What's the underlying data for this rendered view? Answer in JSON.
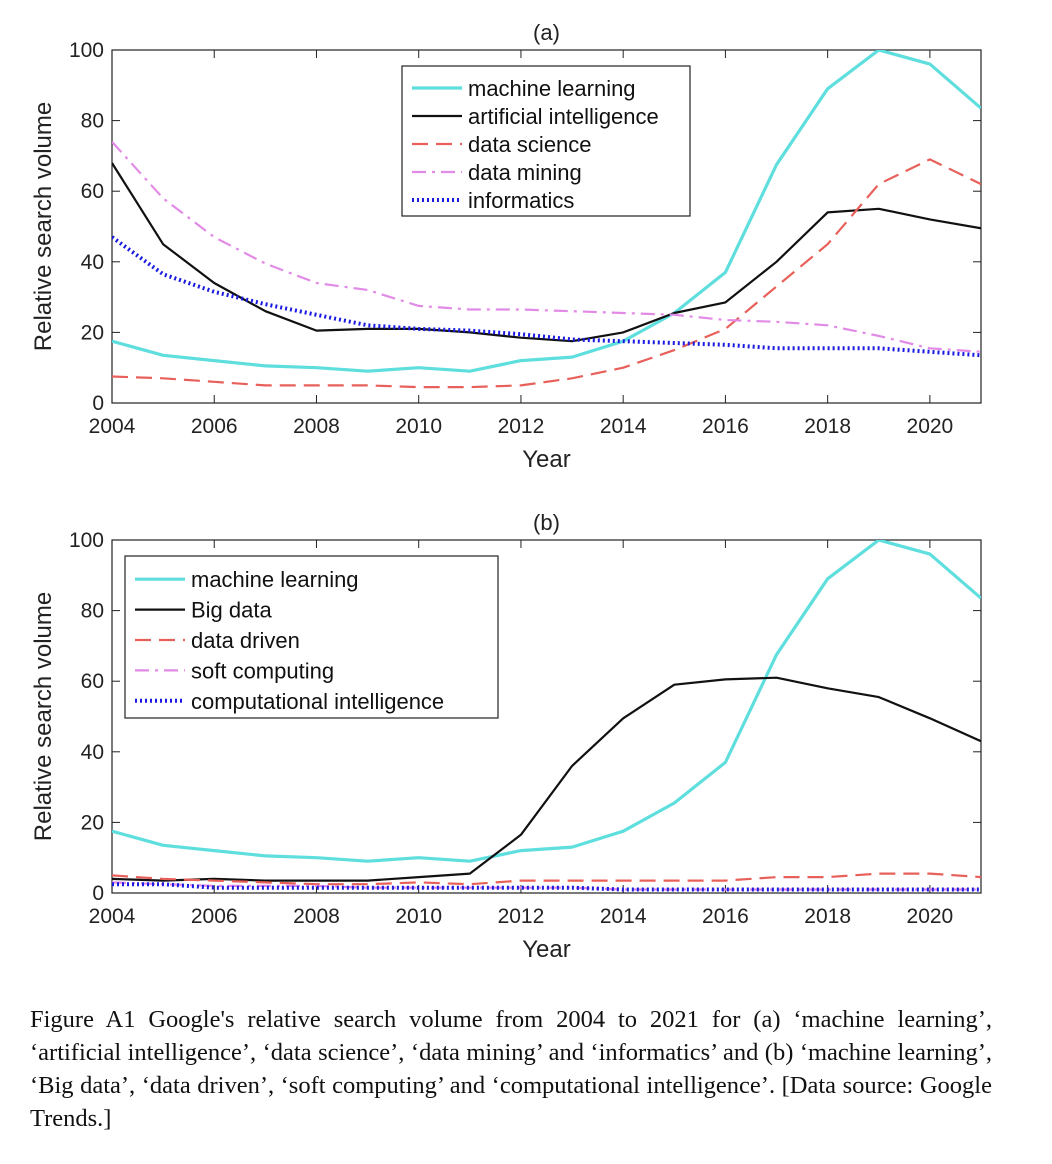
{
  "caption": "Figure A1 Google's relative search volume from 2004 to 2021 for (a) ‘machine learning’, ‘artificial intelligence’, ‘data science’, ‘data mining’ and ‘informatics’ and (b) ‘machine learning’, ‘Big data’, ‘data driven’, ‘soft computing’ and ‘computational intelligence’. [Data source: Google Trends.]",
  "colors": {
    "machine_learning": "#5fdede",
    "black_series": "#111111",
    "red_dashed": "#e8605a",
    "violet_dashdot": "#e28be6",
    "blue_dotted": "#1a1ae0"
  },
  "chart_data": [
    {
      "type": "line",
      "title": "(a)",
      "xlabel": "Year",
      "ylabel": "Relative search volume",
      "xlim": [
        2004,
        2021
      ],
      "ylim": [
        0,
        100
      ],
      "xticks": [
        2004,
        2006,
        2008,
        2010,
        2012,
        2014,
        2016,
        2018,
        2020
      ],
      "yticks": [
        0,
        20,
        40,
        60,
        80,
        100
      ],
      "legend_position": "top-center",
      "x": [
        2004,
        2005,
        2006,
        2007,
        2008,
        2009,
        2010,
        2011,
        2012,
        2013,
        2014,
        2015,
        2016,
        2017,
        2018,
        2019,
        2020,
        2021
      ],
      "series": [
        {
          "name": "machine learning",
          "style": "solid",
          "color": "#5fdede",
          "values": [
            17.5,
            13.5,
            12,
            10.5,
            10,
            9,
            10,
            9,
            12,
            13,
            17.5,
            25.5,
            37,
            67.5,
            89,
            100,
            96,
            83.5
          ]
        },
        {
          "name": "artificial intelligence",
          "style": "solid",
          "color": "#111111",
          "values": [
            68,
            45,
            34,
            26,
            20.5,
            21,
            21,
            20,
            18.5,
            17.5,
            20,
            25.5,
            28.5,
            40,
            54,
            55,
            52,
            49.5
          ]
        },
        {
          "name": "data science",
          "style": "dashed",
          "color": "#e8605a",
          "values": [
            7.5,
            7,
            6,
            5,
            5,
            5,
            4.5,
            4.5,
            5,
            7,
            10,
            15,
            21,
            33,
            45,
            62,
            69,
            62
          ]
        },
        {
          "name": "data mining",
          "style": "dashdot",
          "color": "#e28be6",
          "values": [
            74,
            58,
            47,
            39.5,
            34,
            32,
            27.5,
            26.5,
            26.5,
            26,
            25.5,
            25,
            23.5,
            23,
            22,
            19,
            15.5,
            14.5
          ]
        },
        {
          "name": "informatics",
          "style": "dotted",
          "color": "#1a1ae0",
          "values": [
            47,
            36.5,
            31.5,
            28,
            25,
            22,
            21,
            20.5,
            19.5,
            18,
            17.5,
            17,
            16.5,
            15.5,
            15.5,
            15.5,
            14.5,
            13.5
          ]
        }
      ]
    },
    {
      "type": "line",
      "title": "(b)",
      "xlabel": "Year",
      "ylabel": "Relative search volume",
      "xlim": [
        2004,
        2021
      ],
      "ylim": [
        0,
        100
      ],
      "xticks": [
        2004,
        2006,
        2008,
        2010,
        2012,
        2014,
        2016,
        2018,
        2020
      ],
      "yticks": [
        0,
        20,
        40,
        60,
        80,
        100
      ],
      "legend_position": "top-left",
      "x": [
        2004,
        2005,
        2006,
        2007,
        2008,
        2009,
        2010,
        2011,
        2012,
        2013,
        2014,
        2015,
        2016,
        2017,
        2018,
        2019,
        2020,
        2021
      ],
      "series": [
        {
          "name": "machine learning",
          "style": "solid",
          "color": "#5fdede",
          "values": [
            17.5,
            13.5,
            12,
            10.5,
            10,
            9,
            10,
            9,
            12,
            13,
            17.5,
            25.5,
            37,
            67.5,
            89,
            100,
            96,
            83.5
          ]
        },
        {
          "name": "Big data",
          "style": "solid",
          "color": "#111111",
          "values": [
            4,
            3.5,
            4,
            3.5,
            3.5,
            3.5,
            4.5,
            5.5,
            16.5,
            36,
            49.5,
            59,
            60.5,
            61,
            58,
            55.5,
            49.5,
            43
          ]
        },
        {
          "name": "data driven",
          "style": "dashed",
          "color": "#e8605a",
          "values": [
            5,
            4,
            3.5,
            3,
            2.5,
            2.5,
            3,
            2.5,
            3.5,
            3.5,
            3.5,
            3.5,
            3.5,
            4.5,
            4.5,
            5.5,
            5.5,
            4.5
          ]
        },
        {
          "name": "soft computing",
          "style": "dashdot",
          "color": "#e28be6",
          "values": [
            3,
            2.5,
            2,
            2,
            2,
            1.5,
            1.5,
            1.5,
            1.5,
            1.5,
            1,
            1,
            1,
            1,
            1,
            1,
            1,
            1
          ]
        },
        {
          "name": "computational intelligence",
          "style": "dotted",
          "color": "#1a1ae0",
          "values": [
            2.5,
            2.5,
            1.5,
            1.5,
            1.5,
            1.5,
            1.5,
            1.5,
            1.5,
            1.5,
            1,
            1,
            1,
            1,
            1,
            1,
            1,
            1
          ]
        }
      ]
    }
  ]
}
